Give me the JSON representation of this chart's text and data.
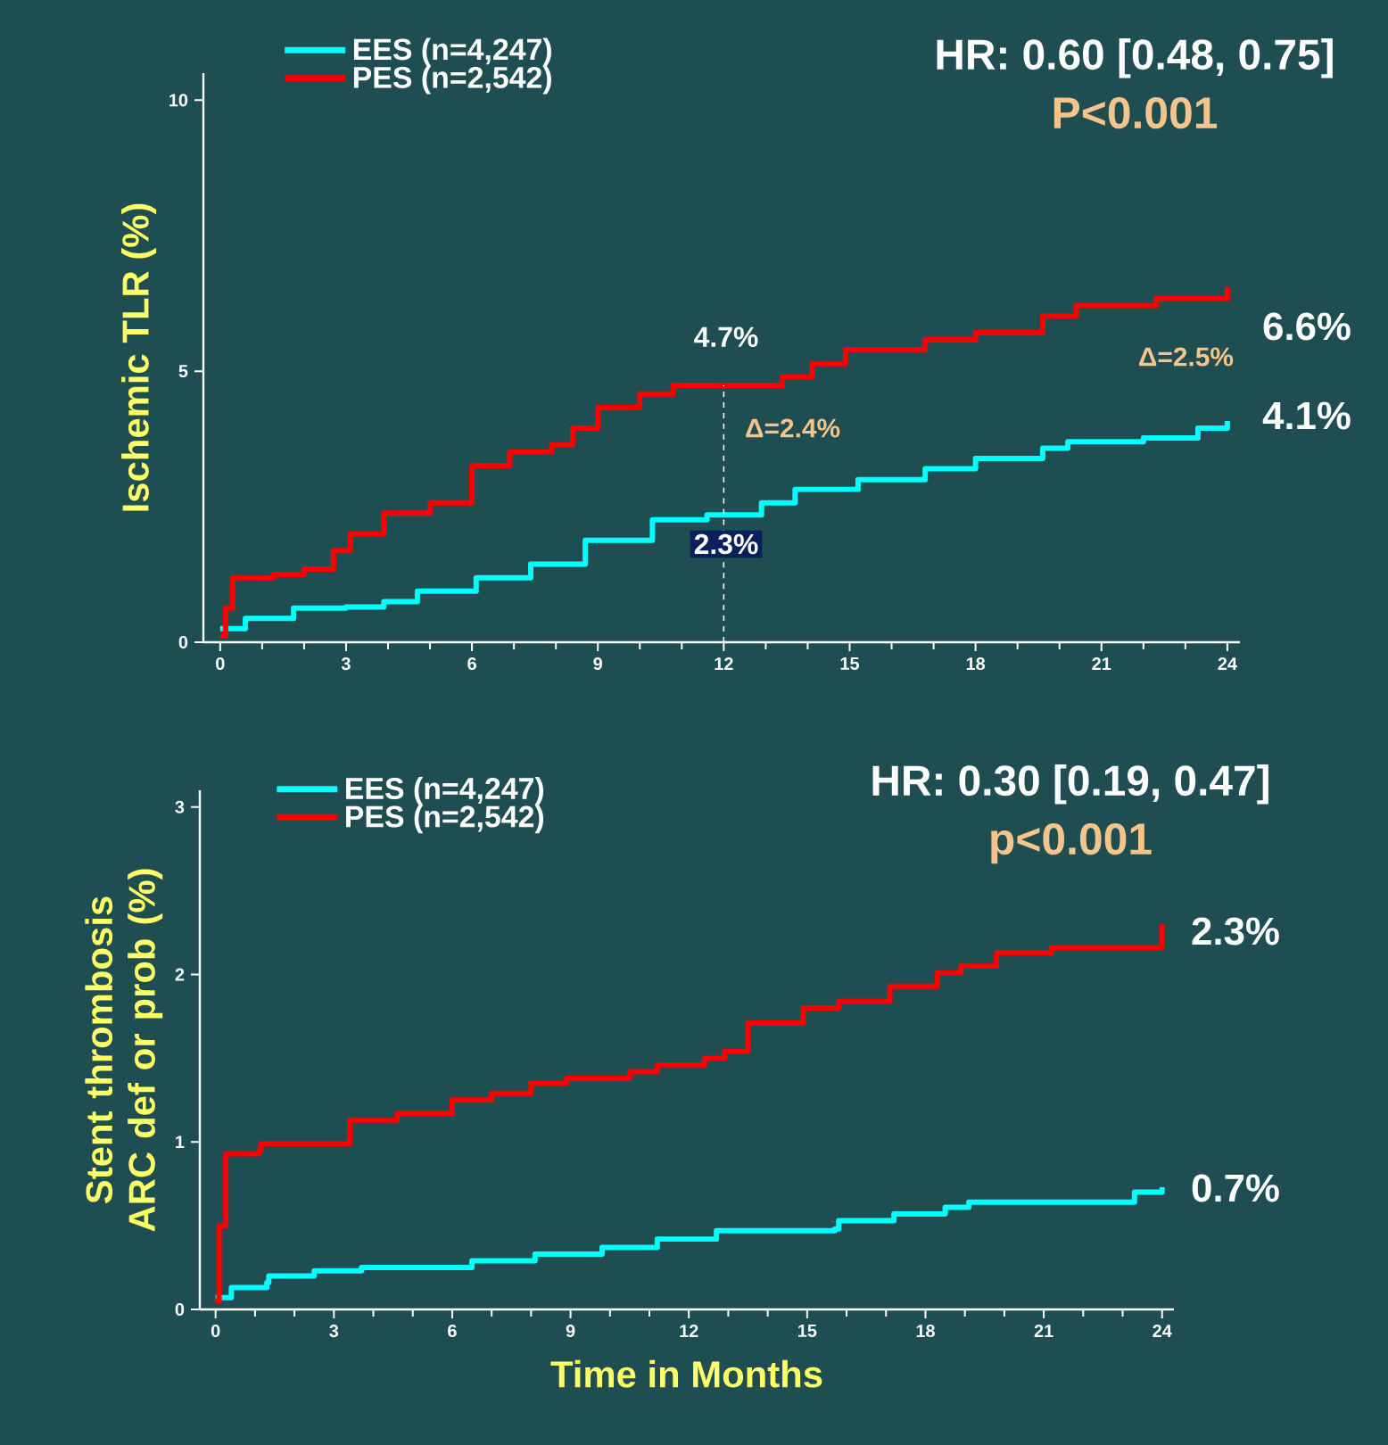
{
  "chart_data": [
    {
      "type": "step",
      "ylabel": "Ischemic TLR (%)",
      "xlim": [
        -0.4,
        24.3
      ],
      "ylim": [
        0,
        10.5
      ],
      "xticks": [
        0,
        3,
        6,
        9,
        12,
        15,
        18,
        21,
        24
      ],
      "yticks": [
        0,
        5,
        10
      ],
      "grid": false,
      "legend": "top left",
      "marker": "none",
      "line_style": "solid",
      "series": [
        {
          "name": "EES (n=4,247)",
          "color": "#00ffff",
          "x": [
            0,
            0.6,
            1.75,
            3,
            3.9,
            4.7,
            6.1,
            7.4,
            8.7,
            10.3,
            11.6,
            12.9,
            13.7,
            15.2,
            16.8,
            18,
            19.6,
            20.2,
            22,
            23.3,
            24
          ],
          "values": [
            0.25,
            0.44,
            0.63,
            0.65,
            0.75,
            0.94,
            1.19,
            1.44,
            1.88,
            2.26,
            2.35,
            2.57,
            2.82,
            3.0,
            3.2,
            3.39,
            3.58,
            3.7,
            3.77,
            3.95,
            4.08
          ]
        },
        {
          "name": "PES (n=2,542)",
          "color": "#ff0000",
          "x": [
            0,
            0.13,
            0.3,
            1.27,
            2,
            2.7,
            3.1,
            3.9,
            5,
            6,
            6.9,
            7.9,
            8.4,
            9,
            10,
            10.8,
            13.4,
            14.1,
            14.9,
            16.8,
            18,
            19.6,
            20.4,
            22.3,
            24
          ],
          "values": [
            0.12,
            0.63,
            1.19,
            1.25,
            1.35,
            1.69,
            2.0,
            2.38,
            2.57,
            3.26,
            3.51,
            3.64,
            3.95,
            4.33,
            4.58,
            4.74,
            4.89,
            5.14,
            5.4,
            5.58,
            5.71,
            6.02,
            6.21,
            6.34,
            6.55
          ]
        }
      ],
      "ref_lines": [
        {
          "axis": "x",
          "value": 12,
          "color": "#ffffff",
          "line_style": "dashed"
        }
      ],
      "annotations": [
        "HR: 0.60 [0.48, 0.75]",
        "P<0.001",
        "4.7%",
        "2.3%",
        "Δ=2.4%",
        "Δ=2.5%",
        "6.6%",
        "4.1%"
      ]
    },
    {
      "type": "step",
      "ylabel": "Stent thrombosis ARC def or prob (%)",
      "xlabel": "Time in Months",
      "xlim": [
        -0.4,
        24.3
      ],
      "ylim": [
        0,
        3.1
      ],
      "xticks": [
        0,
        3,
        6,
        9,
        12,
        15,
        18,
        21,
        24
      ],
      "yticks": [
        0,
        1,
        2,
        3
      ],
      "grid": false,
      "legend": "top left",
      "marker": "none",
      "line_style": "solid",
      "series": [
        {
          "name": "EES (n=4,247)",
          "color": "#00ffff",
          "x": [
            0,
            0.4,
            1.3,
            1.35,
            2.5,
            3.7,
            6.5,
            8.1,
            9.8,
            11.2,
            12.7,
            15.7,
            15.8,
            17.2,
            18.5,
            19.1,
            23.1,
            23.3,
            24
          ],
          "values": [
            0.07,
            0.13,
            0.16,
            0.2,
            0.23,
            0.25,
            0.29,
            0.33,
            0.37,
            0.42,
            0.47,
            0.48,
            0.53,
            0.57,
            0.61,
            0.64,
            0.64,
            0.7,
            0.73
          ]
        },
        {
          "name": "PES (n=2,542)",
          "color": "#ff0000",
          "x": [
            0,
            0.09,
            0.26,
            1.1,
            1.15,
            2.8,
            3.4,
            4.6,
            6,
            7,
            8,
            8.9,
            10.5,
            11.2,
            12.4,
            12.9,
            13.5,
            14.9,
            15.8,
            17.1,
            18.3,
            18.9,
            19.8,
            21.2,
            23.9,
            24
          ],
          "values": [
            0.05,
            0.5,
            0.93,
            0.95,
            0.99,
            0.99,
            1.13,
            1.17,
            1.25,
            1.29,
            1.35,
            1.38,
            1.42,
            1.46,
            1.5,
            1.54,
            1.71,
            1.8,
            1.84,
            1.93,
            2.01,
            2.05,
            2.13,
            2.16,
            2.16,
            2.3
          ]
        }
      ],
      "annotations": [
        "HR: 0.30 [0.19, 0.47]",
        "p<0.001",
        "2.3%",
        "0.7%"
      ]
    }
  ]
}
